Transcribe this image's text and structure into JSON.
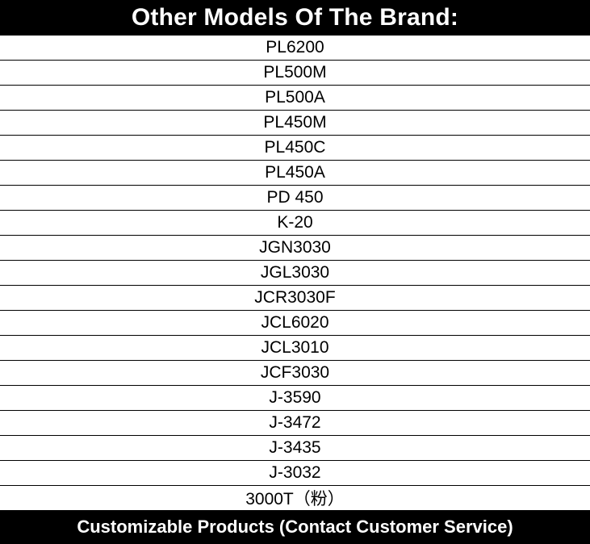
{
  "header": {
    "title": "Other Models Of The Brand:"
  },
  "models": [
    "PL6200",
    "PL500M",
    "PL500A",
    "PL450M",
    "PL450C",
    "PL450A",
    "PD 450",
    "K-20",
    "JGN3030",
    "JGL3030",
    "JCR3030F",
    "JCL6020",
    "JCL3010",
    "JCF3030",
    "J-3590",
    "J-3472",
    "J-3435",
    "J-3032",
    "3000T（粉）"
  ],
  "footer": {
    "text": "Customizable Products (Contact Customer Service)"
  },
  "colors": {
    "banner_bg": "#000000",
    "banner_text": "#ffffff",
    "row_border": "#000000"
  }
}
